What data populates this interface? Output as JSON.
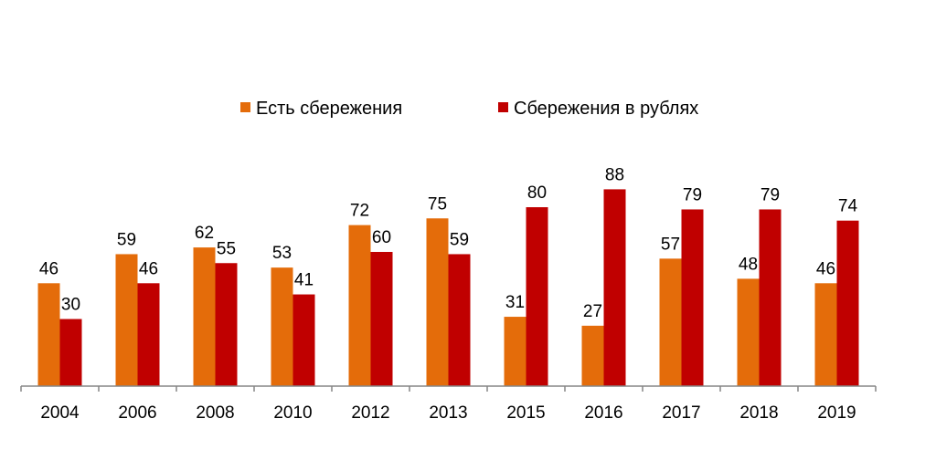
{
  "chart_data": {
    "type": "bar",
    "title": "",
    "xlabel": "",
    "ylabel": "",
    "ylim": [
      0,
      100
    ],
    "grid": false,
    "legend_position": "top",
    "categories": [
      "2004",
      "2006",
      "2008",
      "2010",
      "2012",
      "2013",
      "2015",
      "2016",
      "2017",
      "2018",
      "2019"
    ],
    "series": [
      {
        "name": "Есть сбережения",
        "color": "#E46C0A",
        "values": [
          46,
          59,
          62,
          53,
          72,
          75,
          31,
          27,
          57,
          48,
          46
        ]
      },
      {
        "name": "Сбережения в рублях",
        "color": "#C00000",
        "values": [
          30,
          46,
          55,
          41,
          60,
          59,
          80,
          88,
          79,
          79,
          74
        ]
      }
    ]
  }
}
